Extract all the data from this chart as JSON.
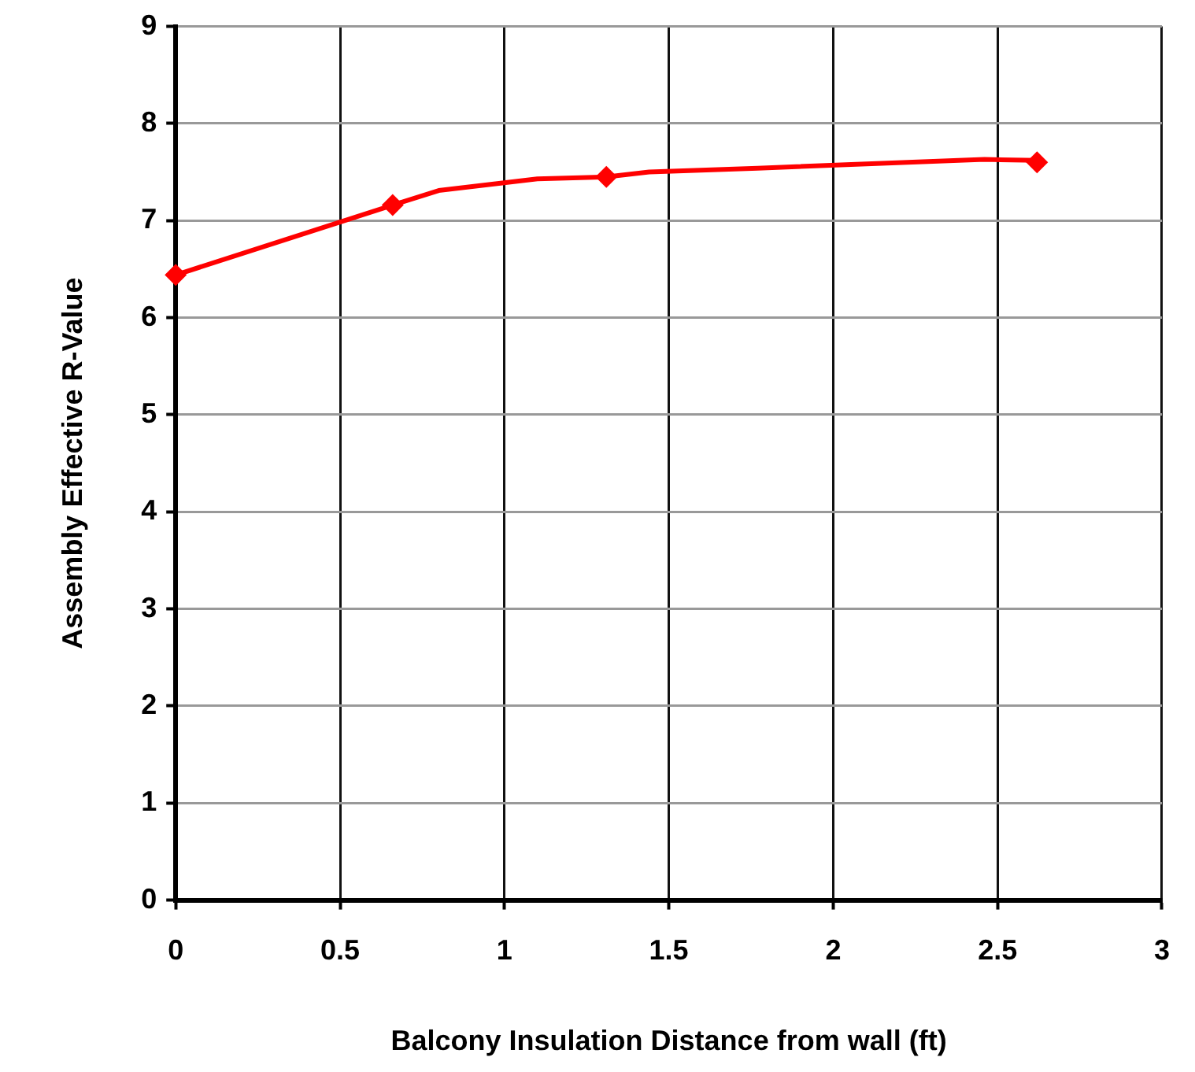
{
  "chart_data": {
    "type": "line",
    "xlabel": "Balcony Insulation Distance from wall (ft)",
    "ylabel": "Assembly Effective R-Value",
    "xlim": [
      0,
      3
    ],
    "xticks": [
      0,
      0.5,
      1,
      1.5,
      2,
      2.5,
      3
    ],
    "ylim": [
      0,
      9
    ],
    "yticks": [
      0,
      1,
      2,
      3,
      4,
      5,
      6,
      7,
      8,
      9
    ],
    "grid": true,
    "series": [
      {
        "type": "line",
        "color": "#ff0000",
        "marker": "none",
        "x": [
          0,
          0.66,
          0.8,
          1.1,
          1.31,
          1.44,
          1.77,
          2.46,
          2.62
        ],
        "values": [
          6.44,
          7.16,
          7.31,
          7.43,
          7.45,
          7.5,
          7.54,
          7.63,
          7.62
        ]
      },
      {
        "type": "scatter",
        "color": "#ff0000",
        "marker": "diamond",
        "x": [
          0,
          0.66,
          1.31,
          2.62
        ],
        "values": [
          6.44,
          7.16,
          7.45,
          7.6
        ]
      }
    ]
  }
}
